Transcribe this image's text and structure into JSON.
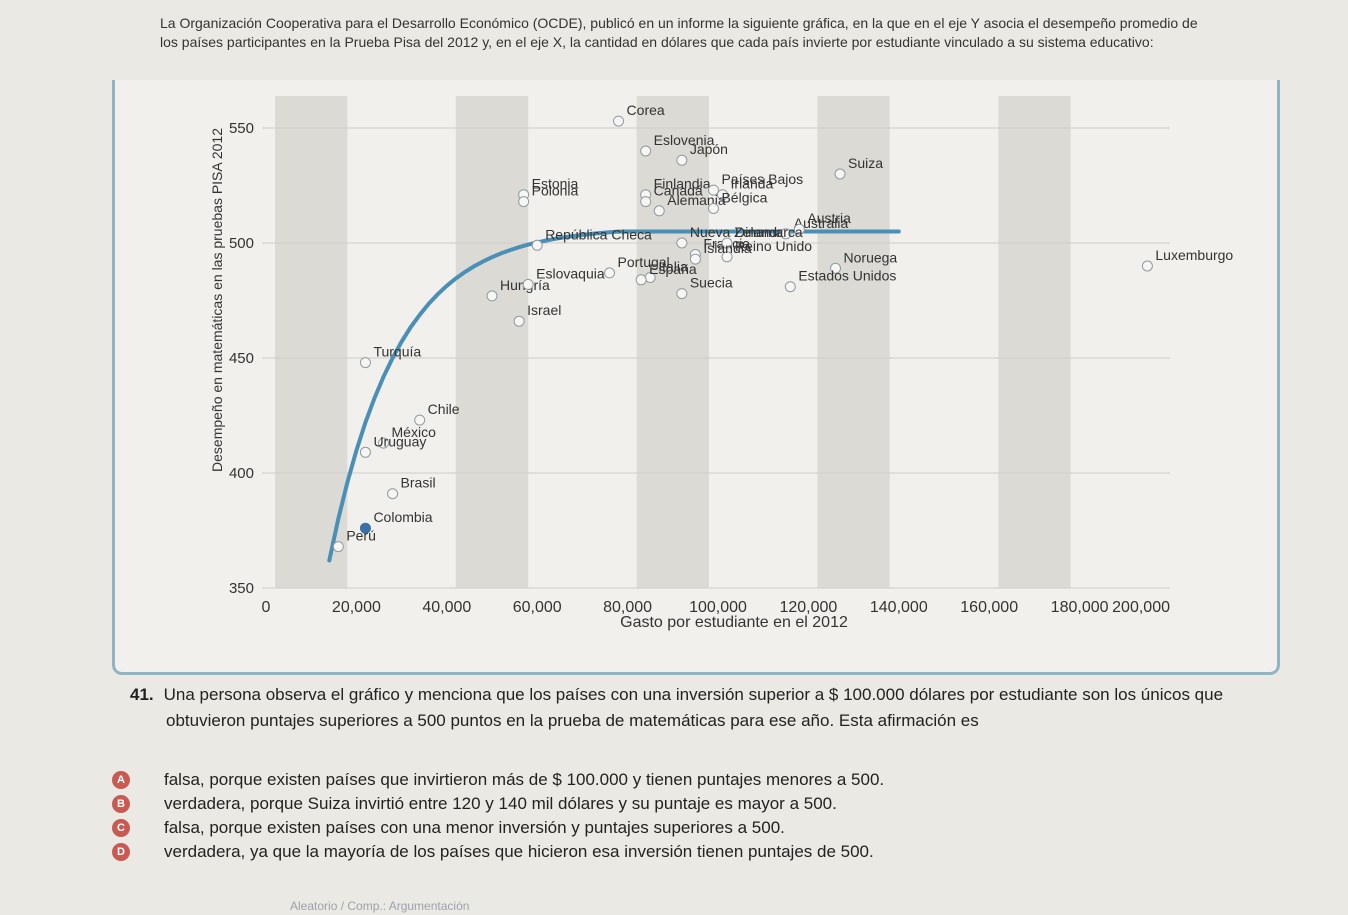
{
  "intro": "La Organización Cooperativa para el Desarrollo Económico (OCDE), publicó en un informe la siguiente gráfica, en la que en el eje Y asocia el desempeño promedio de los países participantes en la Prueba Pisa del 2012 y, en el eje X, la cantidad en dólares que cada país invierte por estudiante vinculado a su sistema educativo:",
  "chart_data": {
    "type": "scatter",
    "xlabel": "Gasto por estudiante en el 2012",
    "ylabel": "Desempeño en matemáticas en las pruebas PISA 2012",
    "xlim": [
      0,
      200000
    ],
    "ylim": [
      350,
      550
    ],
    "x_ticks": [
      "0",
      "20,000",
      "40,000",
      "60,000",
      "80,000",
      "100,000",
      "120,000",
      "140,000",
      "160,000",
      "180,000",
      "200,000"
    ],
    "y_ticks": [
      "350",
      "400",
      "450",
      "500",
      "550"
    ],
    "points": [
      {
        "label": "Corea",
        "x": 78000,
        "y": 553
      },
      {
        "label": "Eslovenia",
        "x": 84000,
        "y": 540
      },
      {
        "label": "Finlandia",
        "x": 84000,
        "y": 521
      },
      {
        "label": "Japón",
        "x": 92000,
        "y": 536
      },
      {
        "label": "Irlanda",
        "x": 101000,
        "y": 521
      },
      {
        "label": "Suiza",
        "x": 127000,
        "y": 530
      },
      {
        "label": "Estonia",
        "x": 57000,
        "y": 521
      },
      {
        "label": "Polonia",
        "x": 57000,
        "y": 518
      },
      {
        "label": "Canadá",
        "x": 84000,
        "y": 518
      },
      {
        "label": "Alemania",
        "x": 87000,
        "y": 514
      },
      {
        "label": "Países Bajos",
        "x": 99000,
        "y": 523
      },
      {
        "label": "Bélgica",
        "x": 99000,
        "y": 515
      },
      {
        "label": "Nueva Zelanda",
        "x": 92000,
        "y": 500
      },
      {
        "label": "Francia",
        "x": 95000,
        "y": 495
      },
      {
        "label": "Australia",
        "x": 115000,
        "y": 504
      },
      {
        "label": "Austria",
        "x": 118000,
        "y": 506
      },
      {
        "label": "República Checa",
        "x": 60000,
        "y": 499
      },
      {
        "label": "Portugal",
        "x": 76000,
        "y": 487
      },
      {
        "label": "Dinamarca",
        "x": 102000,
        "y": 500
      },
      {
        "label": "Noruega",
        "x": 126000,
        "y": 489
      },
      {
        "label": "Italia",
        "x": 85000,
        "y": 485
      },
      {
        "label": "Estados Unidos",
        "x": 116000,
        "y": 481
      },
      {
        "label": "Hungría",
        "x": 50000,
        "y": 477
      },
      {
        "label": "Eslovaquia",
        "x": 58000,
        "y": 482
      },
      {
        "label": "España",
        "x": 83000,
        "y": 484
      },
      {
        "label": "Suecia",
        "x": 92000,
        "y": 478
      },
      {
        "label": "Reino Unido",
        "x": 102000,
        "y": 494
      },
      {
        "label": "Islandia",
        "x": 95000,
        "y": 493
      },
      {
        "label": "Israel",
        "x": 56000,
        "y": 466
      },
      {
        "label": "Luxemburgo",
        "x": 195000,
        "y": 490
      },
      {
        "label": "Turquía",
        "x": 22000,
        "y": 448
      },
      {
        "label": "Chile",
        "x": 34000,
        "y": 423
      },
      {
        "label": "México",
        "x": 26000,
        "y": 413
      },
      {
        "label": "Uruguay",
        "x": 22000,
        "y": 409
      },
      {
        "label": "Brasil",
        "x": 28000,
        "y": 391
      },
      {
        "label": "Colombia",
        "x": 22000,
        "y": 376
      },
      {
        "label": "Perú",
        "x": 16000,
        "y": 368
      }
    ],
    "highlight": [
      "Colombia"
    ],
    "trend_line": true,
    "grid": "horizontal",
    "bands": "vertical stripes"
  },
  "question": {
    "number": "41.",
    "text": "Una persona observa el gráfico y menciona que los países con una inversión superior a $ 100.000 dólares por estudiante son los únicos que",
    "text_cont": "obtuvieron puntajes superiores a 500 puntos en la prueba de matemáticas para ese año. Esta afirmación es"
  },
  "options": [
    {
      "letter": "A",
      "text": "falsa, porque existen países que invirtieron más de $ 100.000 y tienen puntajes menores a 500."
    },
    {
      "letter": "B",
      "text": "verdadera, porque Suiza invirtió entre 120 y 140 mil dólares y su puntaje es mayor a 500."
    },
    {
      "letter": "C",
      "text": "falsa, porque existen países con una menor inversión y puntajes superiores a 500."
    },
    {
      "letter": "D",
      "text": "verdadera, ya que la mayoría de los países que hicieron esa inversión tienen puntajes de 500."
    }
  ],
  "footer": "Aleatorio / Comp.: Argumentación",
  "colors": {
    "trend": "#4a8fb5",
    "band": "#dcdad5",
    "marker_fill": "#f7f6f3",
    "marker_stroke": "#8e9aa3",
    "highlight": "#3b6fa8",
    "accent": "#c85a52"
  }
}
